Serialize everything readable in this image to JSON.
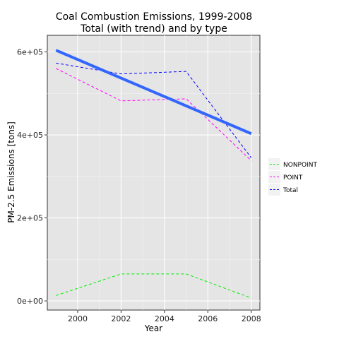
{
  "chart_data": {
    "type": "line",
    "title": "Coal Combustion Emissions, 1999-2008",
    "subtitle": "Total (with trend) and by type",
    "xlabel": "Year",
    "ylabel": "PM-2.5 Emissions [tons]",
    "xlim": [
      1998.6,
      2008.4
    ],
    "ylim": [
      -22000,
      640000
    ],
    "x_ticks": [
      2000,
      2002,
      2004,
      2006,
      2008
    ],
    "y_ticks": [
      0,
      200000,
      400000,
      600000
    ],
    "y_tick_labels": [
      "0e+00",
      "2e+05",
      "4e+05",
      "6e+05"
    ],
    "grid": true,
    "legend_position": "right",
    "x": [
      1999,
      2002,
      2005,
      2008
    ],
    "series": [
      {
        "name": "NONPOINT",
        "values": [
          13000,
          65000,
          65000,
          7000
        ],
        "color": "#00ee00",
        "style": "dashed"
      },
      {
        "name": "POINT",
        "values": [
          560000,
          482000,
          487000,
          338000
        ],
        "color": "#ff00ff",
        "style": "dashed"
      },
      {
        "name": "Total",
        "values": [
          573000,
          547000,
          553000,
          345000
        ],
        "color": "#0000ff",
        "style": "dashed"
      }
    ],
    "trend": {
      "x": [
        1999,
        2008
      ],
      "values": [
        604000,
        403000
      ],
      "color": "#3366ff"
    }
  }
}
